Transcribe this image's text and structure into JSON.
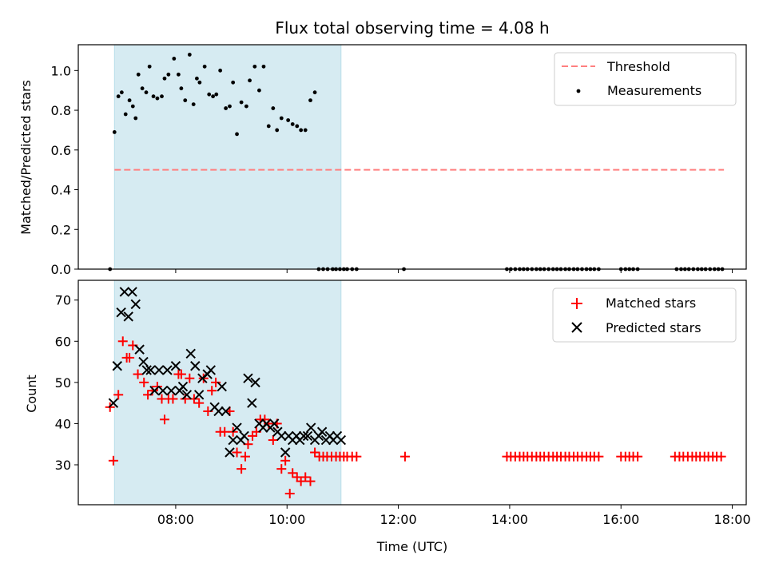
{
  "chart_data": [
    {
      "type": "scatter",
      "title": "Flux total observing time = 4.08 h",
      "ylabel": "Matched/Predicted stars",
      "xlim_hours": [
        6.25,
        18.25
      ],
      "ylim": [
        0,
        1.13
      ],
      "yticks": [
        "0.0",
        "0.2",
        "0.4",
        "0.6",
        "0.8",
        "1.0"
      ],
      "ytick_values": [
        0,
        0.2,
        0.4,
        0.6,
        0.8,
        1.0
      ],
      "observing_window_hours": [
        6.9,
        10.97
      ],
      "threshold": {
        "name": "Threshold",
        "value": 0.5,
        "x_range_hours": [
          6.9,
          17.85
        ],
        "color": "#ff7f7f"
      },
      "series": [
        {
          "name": "Measurements",
          "color": "#000000",
          "x_hours": [
            6.82,
            6.9,
            6.97,
            7.03,
            7.1,
            7.17,
            7.23,
            7.28,
            7.33,
            7.4,
            7.47,
            7.53,
            7.6,
            7.67,
            7.75,
            7.8,
            7.87,
            7.97,
            8.05,
            8.1,
            8.17,
            8.25,
            8.32,
            8.38,
            8.43,
            8.52,
            8.6,
            8.67,
            8.73,
            8.8,
            8.9,
            8.97,
            9.03,
            9.1,
            9.18,
            9.27,
            9.33,
            9.42,
            9.5,
            9.58,
            9.67,
            9.75,
            9.82,
            9.9,
            10.02,
            10.1,
            10.18,
            10.25,
            10.33,
            10.42,
            10.5,
            10.57,
            10.65,
            10.73,
            10.82,
            10.88,
            10.95,
            11.02,
            11.08,
            11.17,
            11.25,
            12.1,
            13.95,
            14.02,
            14.1,
            14.18,
            14.25,
            14.32,
            14.4,
            14.48,
            14.55,
            14.62,
            14.7,
            14.78,
            14.85,
            14.92,
            15.0,
            15.07,
            15.15,
            15.22,
            15.3,
            15.38,
            15.45,
            15.52,
            15.6,
            16.0,
            16.08,
            16.15,
            16.22,
            16.3,
            17.0,
            17.08,
            17.15,
            17.22,
            17.3,
            17.38,
            17.45,
            17.52,
            17.6,
            17.68,
            17.75,
            17.82
          ],
          "y": [
            0.0,
            0.69,
            0.87,
            0.89,
            0.78,
            0.85,
            0.82,
            0.76,
            0.98,
            0.91,
            0.89,
            1.02,
            0.87,
            0.86,
            0.87,
            0.96,
            0.98,
            1.06,
            0.98,
            0.91,
            0.85,
            1.08,
            0.83,
            0.96,
            0.94,
            1.02,
            0.88,
            0.87,
            0.88,
            1.0,
            0.81,
            0.82,
            0.94,
            0.68,
            0.84,
            0.82,
            0.95,
            1.02,
            0.9,
            1.02,
            0.72,
            0.81,
            0.7,
            0.76,
            0.75,
            0.73,
            0.72,
            0.7,
            0.7,
            0.85,
            0.89,
            0.0,
            0.0,
            0.0,
            0.0,
            0.0,
            0.0,
            0.0,
            0.0,
            0.0,
            0.0,
            0.0,
            0.0,
            0.0,
            0.0,
            0.0,
            0.0,
            0.0,
            0.0,
            0.0,
            0.0,
            0.0,
            0.0,
            0.0,
            0.0,
            0.0,
            0.0,
            0.0,
            0.0,
            0.0,
            0.0,
            0.0,
            0.0,
            0.0,
            0.0,
            0.0,
            0.0,
            0.0,
            0.0,
            0.0,
            0.0,
            0.0,
            0.0,
            0.0,
            0.0,
            0.0,
            0.0,
            0.0,
            0.0,
            0.0,
            0.0,
            0.0
          ]
        }
      ],
      "legend": {
        "location": "top-right",
        "entries": [
          "Threshold",
          "Measurements"
        ]
      },
      "grid": false
    },
    {
      "type": "scatter",
      "xlabel": "Time (UTC)",
      "ylabel": "Count",
      "xlim_hours": [
        6.25,
        18.25
      ],
      "ylim": [
        20.3,
        74.8
      ],
      "yticks": [
        "30",
        "40",
        "50",
        "60",
        "70"
      ],
      "ytick_values": [
        30,
        40,
        50,
        60,
        70
      ],
      "xticks": [
        "08:00",
        "10:00",
        "12:00",
        "14:00",
        "16:00",
        "18:00"
      ],
      "xtick_values_hours": [
        8,
        10,
        12,
        14,
        16,
        18
      ],
      "observing_window_hours": [
        6.9,
        10.97
      ],
      "series": [
        {
          "name": "Matched stars",
          "marker": "plus",
          "color": "#ff0000",
          "x_hours": [
            6.82,
            6.88,
            6.97,
            7.05,
            7.12,
            7.17,
            7.23,
            7.32,
            7.43,
            7.5,
            7.58,
            7.67,
            7.75,
            7.8,
            7.87,
            7.95,
            8.05,
            8.1,
            8.17,
            8.25,
            8.33,
            8.42,
            8.5,
            8.58,
            8.65,
            8.72,
            8.8,
            8.88,
            8.97,
            9.03,
            9.1,
            9.18,
            9.25,
            9.3,
            9.38,
            9.45,
            9.52,
            9.6,
            9.67,
            9.75,
            9.82,
            9.9,
            9.97,
            10.05,
            10.1,
            10.18,
            10.25,
            10.33,
            10.42,
            10.5,
            10.58,
            10.65,
            10.72,
            10.8,
            10.88,
            10.95,
            11.02,
            11.08,
            11.17,
            11.25,
            12.12,
            13.95,
            14.02,
            14.1,
            14.18,
            14.25,
            14.32,
            14.4,
            14.48,
            14.55,
            14.62,
            14.7,
            14.78,
            14.85,
            14.92,
            15.0,
            15.07,
            15.15,
            15.22,
            15.3,
            15.38,
            15.45,
            15.52,
            15.6,
            16.0,
            16.08,
            16.15,
            16.22,
            16.3,
            16.97,
            17.05,
            17.12,
            17.2,
            17.28,
            17.35,
            17.42,
            17.5,
            17.57,
            17.65,
            17.72,
            17.8
          ],
          "y": [
            44,
            31,
            47,
            60,
            56,
            56,
            59,
            52,
            50,
            47,
            48,
            49,
            46,
            41,
            46,
            46,
            52,
            52,
            46,
            51,
            46,
            45,
            51,
            43,
            48,
            50,
            38,
            38,
            43,
            38,
            33,
            29,
            32,
            35,
            37,
            38,
            41,
            41,
            40,
            36,
            40,
            29,
            31,
            23,
            28,
            27,
            26,
            27,
            26,
            33,
            32,
            32,
            32,
            32,
            32,
            32,
            32,
            32,
            32,
            32,
            32,
            32,
            32,
            32,
            32,
            32,
            32,
            32,
            32,
            32,
            32,
            32,
            32,
            32,
            32,
            32,
            32,
            32,
            32,
            32,
            32,
            32,
            32,
            32,
            32,
            32,
            32,
            32,
            32,
            32,
            32,
            32,
            32,
            32,
            32,
            32,
            32,
            32,
            32,
            32,
            32
          ]
        },
        {
          "name": "Predicted stars",
          "marker": "x",
          "color": "#000000",
          "x_hours": [
            6.88,
            6.95,
            7.02,
            7.08,
            7.15,
            7.22,
            7.28,
            7.35,
            7.42,
            7.48,
            7.55,
            7.62,
            7.7,
            7.77,
            7.85,
            7.92,
            8.0,
            8.07,
            8.13,
            8.2,
            8.27,
            8.35,
            8.42,
            8.48,
            8.57,
            8.63,
            8.7,
            8.77,
            8.83,
            8.9,
            8.97,
            9.03,
            9.1,
            9.17,
            9.23,
            9.3,
            9.37,
            9.43,
            9.5,
            9.57,
            9.63,
            9.7,
            9.77,
            9.83,
            9.9,
            9.97,
            10.03,
            10.1,
            10.17,
            10.23,
            10.3,
            10.37,
            10.43,
            10.5,
            10.57,
            10.63,
            10.7,
            10.77,
            10.83,
            10.9,
            10.97
          ],
          "y": [
            45,
            54,
            67,
            72,
            66,
            72,
            69,
            58,
            55,
            53,
            53,
            48,
            53,
            48,
            53,
            48,
            54,
            48,
            49,
            47,
            57,
            54,
            47,
            51,
            52,
            53,
            44,
            43,
            49,
            43,
            33,
            36,
            39,
            36,
            37,
            51,
            45,
            50,
            40,
            39,
            40,
            39,
            40,
            38,
            37,
            33,
            37,
            36,
            37,
            36,
            37,
            37,
            39,
            36,
            37,
            38,
            36,
            37,
            36,
            37,
            36
          ]
        }
      ],
      "legend": {
        "location": "top-right",
        "entries": [
          "Matched stars",
          "Predicted stars"
        ]
      },
      "grid": false
    }
  ],
  "window_color": "#add8e6"
}
